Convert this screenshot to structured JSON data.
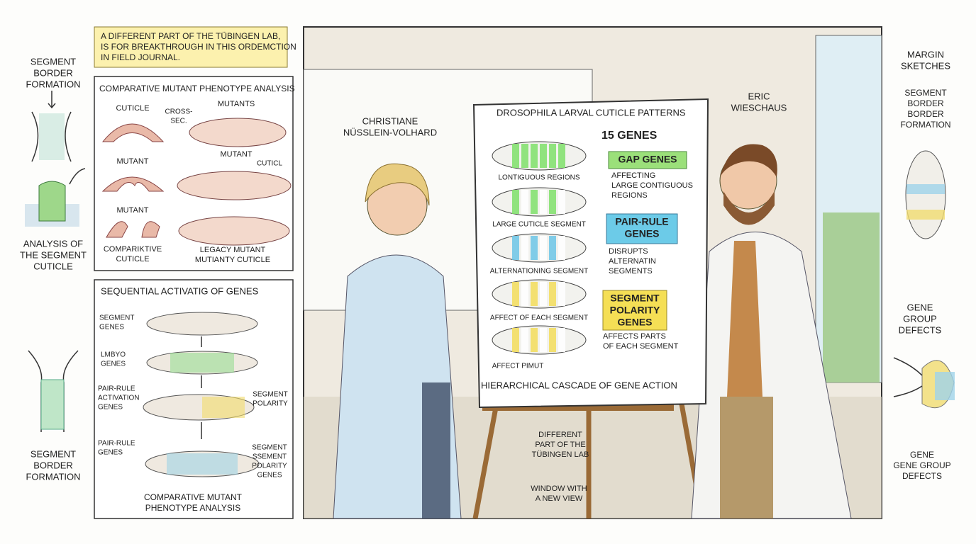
{
  "left_margin": {
    "top_label": [
      "SEGMENT",
      "BORDER",
      "FORMATION"
    ],
    "middle_label": [
      "ANALYSIS OF",
      "THE SEGMENT",
      "CUTICLE"
    ],
    "bottom_label": [
      "SEGMENT",
      "BORDER",
      "FORMATION"
    ]
  },
  "note": [
    "A DIFFERENT PART OF THE TÜBINGEN LAB,",
    "IS FOR BREAKTHROUGH IN THIS ORDEMCTION",
    "IN FIELD JOURNAL."
  ],
  "phenotype_panel": {
    "title": "COMPARATIVE MUTANT PHENOTYPE ANALYSIS",
    "labels": [
      [
        "CUTICLE"
      ],
      [
        "CROSS-",
        "SEC."
      ],
      [
        "MUTANTS"
      ],
      [
        "MUTANT"
      ],
      [
        "MUTANT"
      ],
      [
        "CUTICL"
      ],
      [
        "MUTANT"
      ],
      [
        "COMPARIKTIVE",
        "CUTICLE"
      ],
      [
        "LEGACY MUTANT",
        "MUTIANTY CUTICLE"
      ]
    ]
  },
  "sequence_panel": {
    "title": "SEQUENTIAL ACTIVATIG OF GENES",
    "labels": [
      [
        "SEGMENT",
        "GENES"
      ],
      [
        "LMBYO",
        "GENES"
      ],
      [
        "PAIR-RULE",
        "ACTIVATION",
        "GENES"
      ],
      [
        "SEGMENT",
        "POLARITY"
      ],
      [
        "PAIR-RULE",
        "GENES"
      ],
      [
        "SEGMENT",
        "SSEMENT",
        "POLARITY",
        "GENES"
      ],
      [
        "COMPARATIVE MUTANT",
        "PHENOTYPE ANALYSIS"
      ]
    ]
  },
  "scene": {
    "person_left": [
      "CHRISTIANE",
      "NÜSSLEIN-VOLHARD"
    ],
    "person_right": [
      "ERIC",
      "WIESCHAUS"
    ],
    "annotations": [
      [
        "DIFFERENT",
        "PART OF THE",
        "TÜBINGEN LAB"
      ],
      [
        "WINDOW WITH",
        "A NEW VIEW"
      ]
    ]
  },
  "board": {
    "title": "DROSOPHILA LARVAL CUTICLE PATTERNS",
    "gene_count": "15 GENES",
    "groups": [
      {
        "name": [
          "GAP GENES"
        ],
        "description": [
          "AFFECTING",
          "LARGE CONTIGUOUS",
          "REGIONS"
        ]
      },
      {
        "name": [
          "PAIR-RULE",
          "GENES"
        ],
        "description": [
          "DISRUPTS",
          "ALTERNATIN",
          "SEGMENTS"
        ]
      },
      {
        "name": [
          "SEGMENT",
          "POLARITY",
          "GENES"
        ],
        "description": [
          "AFFECTS PARTS",
          "OF EACH SEGMENT"
        ]
      }
    ],
    "larva_labels": [
      "LONTIGUOUS REGIONS",
      "LARGE CUTICLE SEGMENT",
      "ALTERNATIONING SEGMENT",
      "AFFECT OF EACH SEGMENT",
      "AFFECT PIMUT"
    ],
    "footer": "HIERARCHICAL CASCADE OF GENE ACTION"
  },
  "right_margin": {
    "title": [
      "MARGIN",
      "SKETCHES"
    ],
    "top_label": [
      "SEGMENT",
      "BORDER",
      "BORDER",
      "FORMATION"
    ],
    "middle_label": [
      "GENE",
      "GROUP",
      "DEFECTS"
    ],
    "bottom_label": [
      "GENE",
      "GENE GROUP",
      "DEFECTS"
    ]
  }
}
